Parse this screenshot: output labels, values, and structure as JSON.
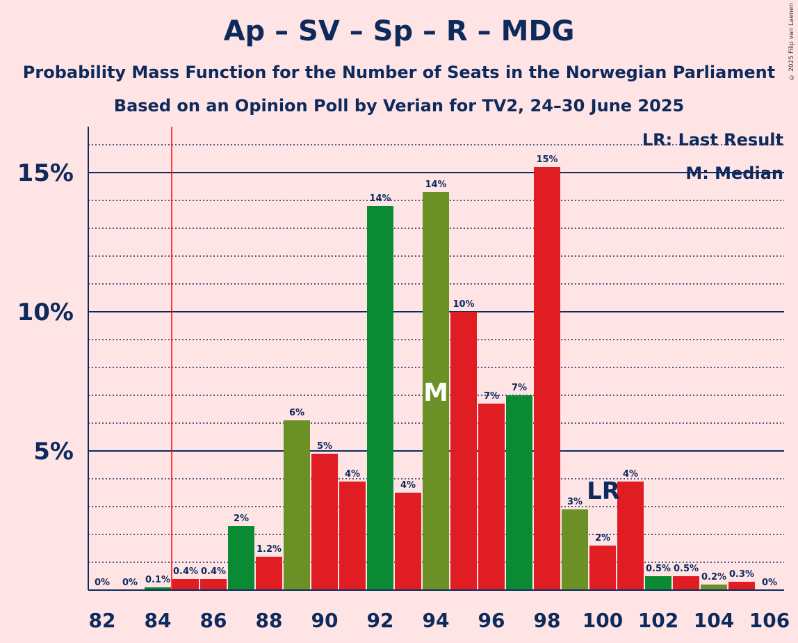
{
  "title": "Ap – SV – Sp – R – MDG",
  "subtitle1": "Probability Mass Function for the Number of Seats in the Norwegian Parliament",
  "subtitle2": "Based on an Opinion Poll by Verian for TV2, 24–30 June 2025",
  "copyright": "© 2025 Filip van Laenen",
  "legend": {
    "lr": "LR: Last Result",
    "m": "M: Median"
  },
  "markers": {
    "median_label": "M",
    "median_seat": 94,
    "last_result_label": "LR",
    "last_result_seat": 85
  },
  "colors": {
    "background": "#ffe4e6",
    "text": "#0d2a5c",
    "red": "#e11d24",
    "green_dark": "#0a8a32",
    "green_olive": "#6b9126",
    "lr_line": "#ff0000"
  },
  "chart_data": {
    "type": "bar",
    "x": [
      82,
      83,
      84,
      85,
      86,
      87,
      88,
      89,
      90,
      91,
      92,
      93,
      94,
      95,
      96,
      97,
      98,
      99,
      100,
      101,
      102,
      103,
      104,
      105,
      106
    ],
    "values": [
      0,
      0,
      0.1,
      0.4,
      0.4,
      2.3,
      1.2,
      6.1,
      4.9,
      3.9,
      13.8,
      3.5,
      14.3,
      10.0,
      6.7,
      7.0,
      15.2,
      2.9,
      1.6,
      3.9,
      0.5,
      0.5,
      0.2,
      0.3,
      0
    ],
    "data_labels": [
      "0%",
      "0%",
      "0.1%",
      "0.4%",
      "0.4%",
      "2%",
      "1.2%",
      "6%",
      "5%",
      "4%",
      "14%",
      "4%",
      "14%",
      "10%",
      "7%",
      "7%",
      "15%",
      "3%",
      "2%",
      "4%",
      "0.5%",
      "0.5%",
      "0.2%",
      "0.3%",
      "0%"
    ],
    "bar_colors": [
      "red",
      "red",
      "green_dark",
      "red",
      "red",
      "green_dark",
      "red",
      "green_olive",
      "red",
      "red",
      "green_dark",
      "red",
      "green_olive",
      "red",
      "red",
      "green_dark",
      "red",
      "green_olive",
      "red",
      "red",
      "green_dark",
      "red",
      "green_olive",
      "red",
      "red"
    ],
    "xticks": [
      "82",
      "84",
      "86",
      "88",
      "90",
      "92",
      "94",
      "96",
      "98",
      "100",
      "102",
      "104",
      "106"
    ],
    "yticks": [
      "5%",
      "10%",
      "15%"
    ],
    "ylim": [
      0,
      16.6
    ],
    "xlabel": "",
    "ylabel": ""
  }
}
